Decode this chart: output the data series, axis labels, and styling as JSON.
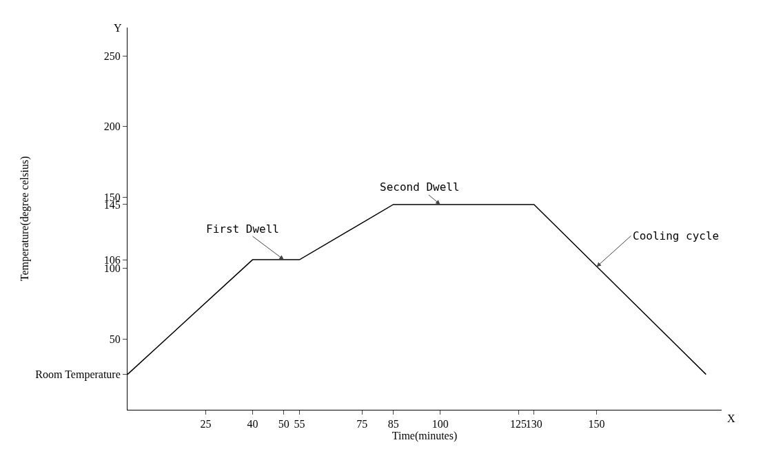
{
  "chart_data": {
    "type": "line",
    "xlabel": "Time(minutes)",
    "ylabel": "Temperature(degree celsius)",
    "x": [
      0,
      40,
      55,
      85,
      130,
      185
    ],
    "series": [
      {
        "color": "#000000",
        "values": [
          25,
          106,
          106,
          145,
          145,
          25
        ]
      }
    ],
    "xlim": [
      0,
      190
    ],
    "ylim": [
      0,
      270
    ],
    "xticks": [
      25,
      40,
      50,
      55,
      75,
      85,
      100,
      125,
      130,
      150
    ],
    "yticks": [
      {
        "value": 25,
        "label": "Room Temperature"
      },
      50,
      100,
      106,
      145,
      150,
      200,
      250
    ],
    "grid": false,
    "marker": "none",
    "line_style": "solid",
    "annotations": [
      "X",
      "Y",
      {
        "text": "First Dwell",
        "x": 50,
        "y": 106
      },
      {
        "text": "Second Dwell",
        "x": 100,
        "y": 145
      },
      {
        "text": "Cooling cycle",
        "x": 150,
        "y": 101
      }
    ]
  }
}
